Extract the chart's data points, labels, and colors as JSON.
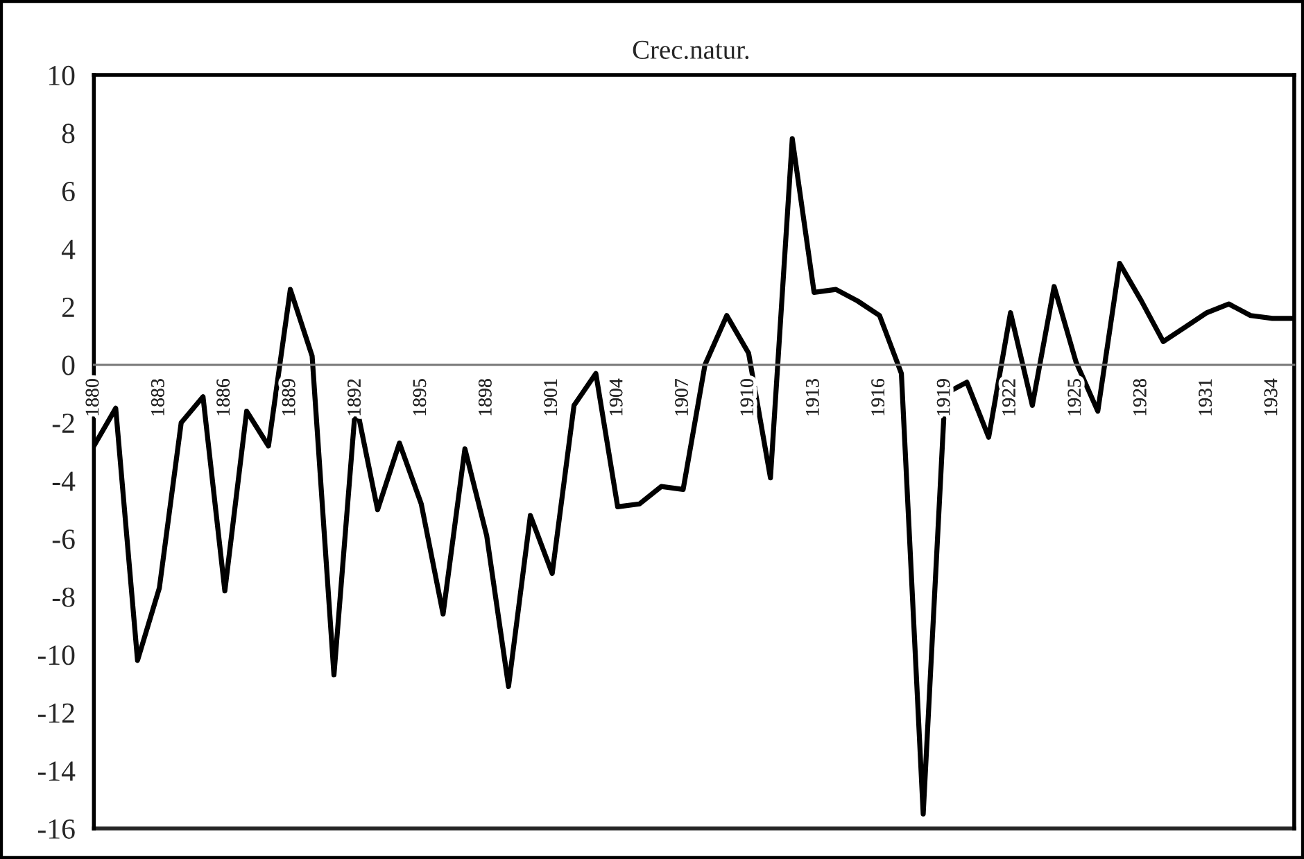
{
  "chart_data": {
    "type": "line",
    "title": "Crec.natur.",
    "x": [
      1880,
      1881,
      1882,
      1883,
      1884,
      1885,
      1886,
      1887,
      1888,
      1889,
      1890,
      1891,
      1892,
      1893,
      1894,
      1895,
      1896,
      1897,
      1898,
      1899,
      1900,
      1901,
      1902,
      1903,
      1904,
      1905,
      1906,
      1907,
      1908,
      1909,
      1910,
      1911,
      1912,
      1913,
      1914,
      1915,
      1916,
      1917,
      1918,
      1919,
      1920,
      1921,
      1922,
      1923,
      1924,
      1925,
      1926,
      1927,
      1928,
      1929,
      1930,
      1931,
      1932,
      1933,
      1934,
      1935
    ],
    "series": [
      {
        "color": "#000000",
        "values": [
          -2.8,
          -1.5,
          -10.2,
          -7.7,
          -2.0,
          -1.1,
          -7.8,
          -1.6,
          -2.8,
          2.6,
          0.3,
          -10.7,
          -1.3,
          -5.0,
          -2.7,
          -4.8,
          -8.6,
          -2.9,
          -5.9,
          -11.1,
          -5.2,
          -7.2,
          -1.4,
          -0.3,
          -4.9,
          -4.8,
          -4.2,
          -4.3,
          0.0,
          1.7,
          0.4,
          -3.9,
          7.8,
          2.5,
          2.6,
          2.2,
          1.7,
          -0.3,
          -15.5,
          -1.0,
          -0.6,
          -2.5,
          1.8,
          -1.4,
          2.7,
          0.1,
          -1.6,
          3.5,
          2.2,
          0.8,
          1.3,
          1.8,
          2.1,
          1.7,
          1.6,
          1.6
        ]
      }
    ],
    "xlim": [
      1880,
      1935
    ],
    "xticks": [
      1880,
      1883,
      1886,
      1889,
      1892,
      1895,
      1898,
      1901,
      1904,
      1907,
      1910,
      1913,
      1916,
      1919,
      1922,
      1925,
      1928,
      1931,
      1934
    ],
    "ylim": [
      -16,
      10
    ],
    "yticks": [
      -16,
      -14,
      -12,
      -10,
      -8,
      -6,
      -4,
      -2,
      0,
      2,
      4,
      6,
      8,
      10
    ],
    "grid": false,
    "legend": false,
    "marker": "none",
    "line_style": "solid"
  }
}
